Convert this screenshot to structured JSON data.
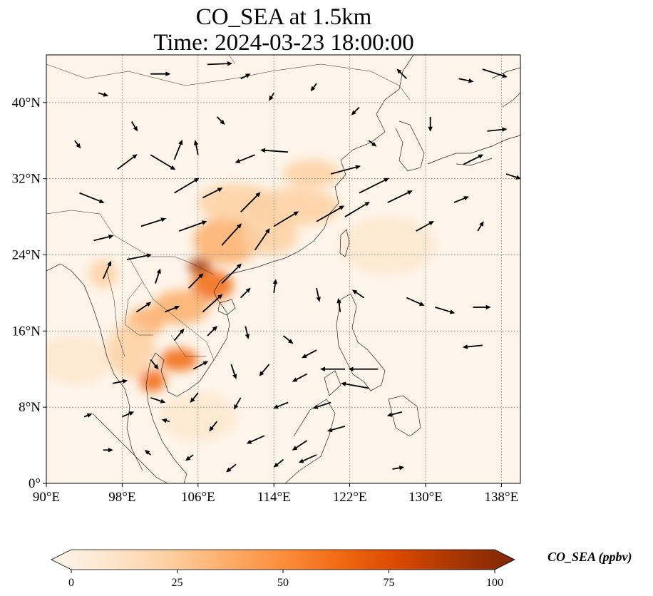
{
  "title": {
    "line1": "CO_SEA at 1.5km",
    "line2": "Time: 2024-03-23 18:00:00"
  },
  "map": {
    "extent": {
      "lon": [
        90,
        140
      ],
      "lat": [
        0,
        45
      ]
    },
    "x_ticks": [
      {
        "value": 90,
        "label": "90°E"
      },
      {
        "value": 98,
        "label": "98°E"
      },
      {
        "value": 106,
        "label": "106°E"
      },
      {
        "value": 114,
        "label": "114°E"
      },
      {
        "value": 122,
        "label": "122°E"
      },
      {
        "value": 130,
        "label": "130°E"
      },
      {
        "value": 138,
        "label": "138°E"
      }
    ],
    "y_ticks": [
      {
        "value": 0,
        "label": "0°"
      },
      {
        "value": 8,
        "label": "8°N"
      },
      {
        "value": 16,
        "label": "16°N"
      },
      {
        "value": 24,
        "label": "24°N"
      },
      {
        "value": 32,
        "label": "32°N"
      },
      {
        "value": 40,
        "label": "40°N"
      }
    ],
    "gridlines": true,
    "co_hotspots": [
      {
        "lon": 106.2,
        "lat": 22.8,
        "rlon": 1.2,
        "rlat": 0.9,
        "value": 85
      },
      {
        "lon": 107.5,
        "lat": 20.8,
        "rlon": 2.2,
        "rlat": 1.6,
        "value": 60
      },
      {
        "lon": 104.2,
        "lat": 18.5,
        "rlon": 3.0,
        "rlat": 1.8,
        "value": 40
      },
      {
        "lon": 104.0,
        "lat": 13.0,
        "rlon": 2.0,
        "rlat": 1.2,
        "value": 60
      },
      {
        "lon": 101.2,
        "lat": 10.8,
        "rlon": 1.4,
        "rlat": 1.2,
        "value": 60
      },
      {
        "lon": 100.5,
        "lat": 17.0,
        "rlon": 2.0,
        "rlat": 1.5,
        "value": 35
      },
      {
        "lon": 109.0,
        "lat": 25.5,
        "rlon": 3.5,
        "rlat": 2.5,
        "value": 35
      },
      {
        "lon": 110.0,
        "lat": 29.5,
        "rlon": 4.0,
        "rlat": 2.0,
        "value": 30
      },
      {
        "lon": 116.0,
        "lat": 29.0,
        "rlon": 5.0,
        "rlat": 2.0,
        "value": 28
      },
      {
        "lon": 118.0,
        "lat": 32.5,
        "rlon": 3.0,
        "rlat": 1.5,
        "value": 25
      },
      {
        "lon": 113.5,
        "lat": 26.0,
        "rlon": 3.0,
        "rlat": 2.0,
        "value": 30
      },
      {
        "lon": 96.0,
        "lat": 22.0,
        "rlon": 1.5,
        "rlat": 1.5,
        "value": 22
      },
      {
        "lon": 93.0,
        "lat": 13.0,
        "rlon": 4.0,
        "rlat": 2.5,
        "value": 15
      },
      {
        "lon": 99.0,
        "lat": 14.0,
        "rlon": 2.5,
        "rlat": 3.0,
        "value": 20
      },
      {
        "lon": 106.0,
        "lat": 7.0,
        "rlon": 4.0,
        "rlat": 2.5,
        "value": 10
      },
      {
        "lon": 126.0,
        "lat": 25.0,
        "rlon": 5.0,
        "rlat": 3.0,
        "value": 8
      }
    ],
    "wind_arrows": [
      {
        "lon": 93.5,
        "lat": 30.5,
        "u": 2.5,
        "v": -1.0
      },
      {
        "lon": 97.5,
        "lat": 33.0,
        "u": 2.0,
        "v": 1.5
      },
      {
        "lon": 101.0,
        "lat": 34.5,
        "u": 2.5,
        "v": -1.5
      },
      {
        "lon": 103.5,
        "lat": 34.0,
        "u": 0.8,
        "v": 2.0
      },
      {
        "lon": 106.0,
        "lat": 34.5,
        "u": -0.3,
        "v": 1.5
      },
      {
        "lon": 112.0,
        "lat": 34.5,
        "u": -2.0,
        "v": -0.8
      },
      {
        "lon": 115.5,
        "lat": 34.8,
        "u": -2.8,
        "v": 0.2
      },
      {
        "lon": 120.0,
        "lat": 32.5,
        "u": 3.0,
        "v": 0.8
      },
      {
        "lon": 123.0,
        "lat": 30.5,
        "u": 3.0,
        "v": 1.5
      },
      {
        "lon": 126.0,
        "lat": 29.5,
        "u": 2.5,
        "v": 1.2
      },
      {
        "lon": 103.5,
        "lat": 30.5,
        "u": 2.5,
        "v": 1.5
      },
      {
        "lon": 106.5,
        "lat": 30.0,
        "u": 2.0,
        "v": 1.0
      },
      {
        "lon": 110.5,
        "lat": 28.5,
        "u": 2.0,
        "v": 2.0
      },
      {
        "lon": 114.0,
        "lat": 27.0,
        "u": 2.5,
        "v": 1.5
      },
      {
        "lon": 118.5,
        "lat": 27.5,
        "u": 2.8,
        "v": 1.6
      },
      {
        "lon": 121.5,
        "lat": 28.0,
        "u": 2.5,
        "v": 1.5
      },
      {
        "lon": 100.0,
        "lat": 27.0,
        "u": 2.5,
        "v": 0.8
      },
      {
        "lon": 104.0,
        "lat": 26.5,
        "u": 2.8,
        "v": 1.0
      },
      {
        "lon": 108.5,
        "lat": 25.0,
        "u": 2.0,
        "v": 2.2
      },
      {
        "lon": 112.0,
        "lat": 24.5,
        "u": 1.5,
        "v": 2.2
      },
      {
        "lon": 95.0,
        "lat": 25.5,
        "u": 2.0,
        "v": 0.5
      },
      {
        "lon": 98.5,
        "lat": 23.5,
        "u": 2.5,
        "v": 0.5
      },
      {
        "lon": 96.0,
        "lat": 21.5,
        "u": 0.8,
        "v": 1.8
      },
      {
        "lon": 101.5,
        "lat": 21.0,
        "u": 0.5,
        "v": 1.5
      },
      {
        "lon": 105.0,
        "lat": 20.5,
        "u": 1.5,
        "v": 1.5
      },
      {
        "lon": 108.5,
        "lat": 21.0,
        "u": 2.0,
        "v": 2.0
      },
      {
        "lon": 102.5,
        "lat": 18.0,
        "u": 1.5,
        "v": 0.6
      },
      {
        "lon": 99.5,
        "lat": 18.0,
        "u": 1.5,
        "v": 1.0
      },
      {
        "lon": 106.5,
        "lat": 18.0,
        "u": 2.0,
        "v": 1.8
      },
      {
        "lon": 110.5,
        "lat": 19.5,
        "u": 1.0,
        "v": 1.0
      },
      {
        "lon": 114.0,
        "lat": 20.0,
        "u": 0.2,
        "v": 1.4
      },
      {
        "lon": 118.5,
        "lat": 20.5,
        "u": 0.3,
        "v": -1.4
      },
      {
        "lon": 121.0,
        "lat": 18.0,
        "u": -0.2,
        "v": 1.4
      },
      {
        "lon": 123.5,
        "lat": 19.5,
        "u": -1.2,
        "v": 0.8
      },
      {
        "lon": 128.0,
        "lat": 19.5,
        "u": 1.8,
        "v": -0.8
      },
      {
        "lon": 131.0,
        "lat": 18.5,
        "u": 2.0,
        "v": -0.6
      },
      {
        "lon": 135.0,
        "lat": 18.5,
        "u": 1.8,
        "v": 0.0
      },
      {
        "lon": 103.5,
        "lat": 15.0,
        "u": 1.0,
        "v": 1.2
      },
      {
        "lon": 107.0,
        "lat": 15.5,
        "u": 1.0,
        "v": 1.0
      },
      {
        "lon": 111.0,
        "lat": 16.5,
        "u": 0.3,
        "v": -1.3
      },
      {
        "lon": 115.0,
        "lat": 15.5,
        "u": 1.0,
        "v": -0.8
      },
      {
        "lon": 118.5,
        "lat": 14.0,
        "u": -1.5,
        "v": -0.8
      },
      {
        "lon": 101.0,
        "lat": 13.0,
        "u": 0.8,
        "v": -1.0
      },
      {
        "lon": 105.5,
        "lat": 12.0,
        "u": 1.5,
        "v": 0.8
      },
      {
        "lon": 109.5,
        "lat": 12.5,
        "u": 0.5,
        "v": -1.5
      },
      {
        "lon": 113.5,
        "lat": 12.5,
        "u": -1.0,
        "v": -1.2
      },
      {
        "lon": 117.5,
        "lat": 11.5,
        "u": -1.5,
        "v": -0.8
      },
      {
        "lon": 121.5,
        "lat": 12.0,
        "u": -2.5,
        "v": 0.0
      },
      {
        "lon": 125.0,
        "lat": 12.0,
        "u": -3.0,
        "v": 0.0
      },
      {
        "lon": 136.0,
        "lat": 14.5,
        "u": -2.0,
        "v": -0.2
      },
      {
        "lon": 97.0,
        "lat": 10.5,
        "u": 1.5,
        "v": 0.3
      },
      {
        "lon": 101.0,
        "lat": 9.0,
        "u": 1.5,
        "v": -0.5
      },
      {
        "lon": 106.0,
        "lat": 9.5,
        "u": -0.8,
        "v": -1.0
      },
      {
        "lon": 110.5,
        "lat": 9.0,
        "u": -0.7,
        "v": -1.2
      },
      {
        "lon": 115.5,
        "lat": 8.5,
        "u": -1.5,
        "v": -0.6
      },
      {
        "lon": 120.0,
        "lat": 8.5,
        "u": -1.8,
        "v": -0.6
      },
      {
        "lon": 124.0,
        "lat": 10.0,
        "u": -2.8,
        "v": 0.5
      },
      {
        "lon": 127.5,
        "lat": 7.5,
        "u": -1.5,
        "v": -0.4
      },
      {
        "lon": 94.0,
        "lat": 7.0,
        "u": 0.8,
        "v": 0.3
      },
      {
        "lon": 98.0,
        "lat": 7.0,
        "u": 1.2,
        "v": 0.5
      },
      {
        "lon": 103.0,
        "lat": 6.5,
        "u": -0.8,
        "v": 0.2
      },
      {
        "lon": 108.0,
        "lat": 6.5,
        "u": -0.8,
        "v": -1.0
      },
      {
        "lon": 113.0,
        "lat": 5.0,
        "u": -1.8,
        "v": -0.8
      },
      {
        "lon": 117.5,
        "lat": 4.5,
        "u": -1.5,
        "v": -1.0
      },
      {
        "lon": 121.5,
        "lat": 6.0,
        "u": -1.8,
        "v": -0.5
      },
      {
        "lon": 96.0,
        "lat": 3.5,
        "u": 1.0,
        "v": 0.0
      },
      {
        "lon": 101.0,
        "lat": 3.0,
        "u": -0.6,
        "v": 0.5
      },
      {
        "lon": 105.5,
        "lat": 3.0,
        "u": -0.8,
        "v": -0.6
      },
      {
        "lon": 110.0,
        "lat": 2.0,
        "u": -1.0,
        "v": -0.8
      },
      {
        "lon": 115.0,
        "lat": 2.5,
        "u": -1.0,
        "v": -0.8
      },
      {
        "lon": 118.5,
        "lat": 3.0,
        "u": -1.8,
        "v": -0.8
      },
      {
        "lon": 126.5,
        "lat": 1.5,
        "u": 1.2,
        "v": 0.2
      },
      {
        "lon": 95.5,
        "lat": 41.0,
        "u": 1.0,
        "v": -0.3
      },
      {
        "lon": 101.0,
        "lat": 43.0,
        "u": 2.0,
        "v": 0.0
      },
      {
        "lon": 107.0,
        "lat": 44.0,
        "u": 2.5,
        "v": 0.1
      },
      {
        "lon": 110.5,
        "lat": 42.5,
        "u": 1.0,
        "v": 0.5
      },
      {
        "lon": 114.0,
        "lat": 41.0,
        "u": -0.5,
        "v": -0.8
      },
      {
        "lon": 118.5,
        "lat": 42.0,
        "u": -0.6,
        "v": -0.8
      },
      {
        "lon": 128.0,
        "lat": 42.5,
        "u": -1.0,
        "v": 1.0
      },
      {
        "lon": 133.5,
        "lat": 42.5,
        "u": 1.5,
        "v": -0.3
      },
      {
        "lon": 136.0,
        "lat": 43.5,
        "u": 2.5,
        "v": -0.8
      },
      {
        "lon": 130.5,
        "lat": 38.5,
        "u": 0.0,
        "v": -1.5
      },
      {
        "lon": 136.5,
        "lat": 37.0,
        "u": 2.0,
        "v": 0.2
      },
      {
        "lon": 134.0,
        "lat": 33.5,
        "u": 2.0,
        "v": 1.0
      },
      {
        "lon": 138.5,
        "lat": 32.5,
        "u": 1.5,
        "v": -0.5
      },
      {
        "lon": 133.0,
        "lat": 29.5,
        "u": 1.5,
        "v": 0.6
      },
      {
        "lon": 129.0,
        "lat": 26.5,
        "u": 1.8,
        "v": 1.0
      },
      {
        "lon": 135.5,
        "lat": 26.5,
        "u": 0.6,
        "v": 1.0
      },
      {
        "lon": 93.0,
        "lat": 36.0,
        "u": 0.6,
        "v": -0.8
      },
      {
        "lon": 99.0,
        "lat": 38.0,
        "u": 0.6,
        "v": -1.0
      },
      {
        "lon": 108.0,
        "lat": 38.5,
        "u": 0.8,
        "v": -0.8
      },
      {
        "lon": 124.0,
        "lat": 36.0,
        "u": 0.8,
        "v": -0.6
      },
      {
        "lon": 123.0,
        "lat": 39.5,
        "u": -0.8,
        "v": -0.8
      }
    ]
  },
  "colorbar": {
    "min": 0,
    "max": 100,
    "extend": "both",
    "colors": [
      "#fff5eb",
      "#fee6ce",
      "#fdd0a2",
      "#fdae6b",
      "#fd8d3c",
      "#f16913",
      "#d94801",
      "#a63603",
      "#7f2704"
    ],
    "ticks": [
      {
        "value": 0,
        "label": "0"
      },
      {
        "value": 25,
        "label": "25"
      },
      {
        "value": 50,
        "label": "50"
      },
      {
        "value": 75,
        "label": "75"
      },
      {
        "value": 100,
        "label": "100"
      }
    ],
    "label": "CO_SEA (ppbv)"
  }
}
